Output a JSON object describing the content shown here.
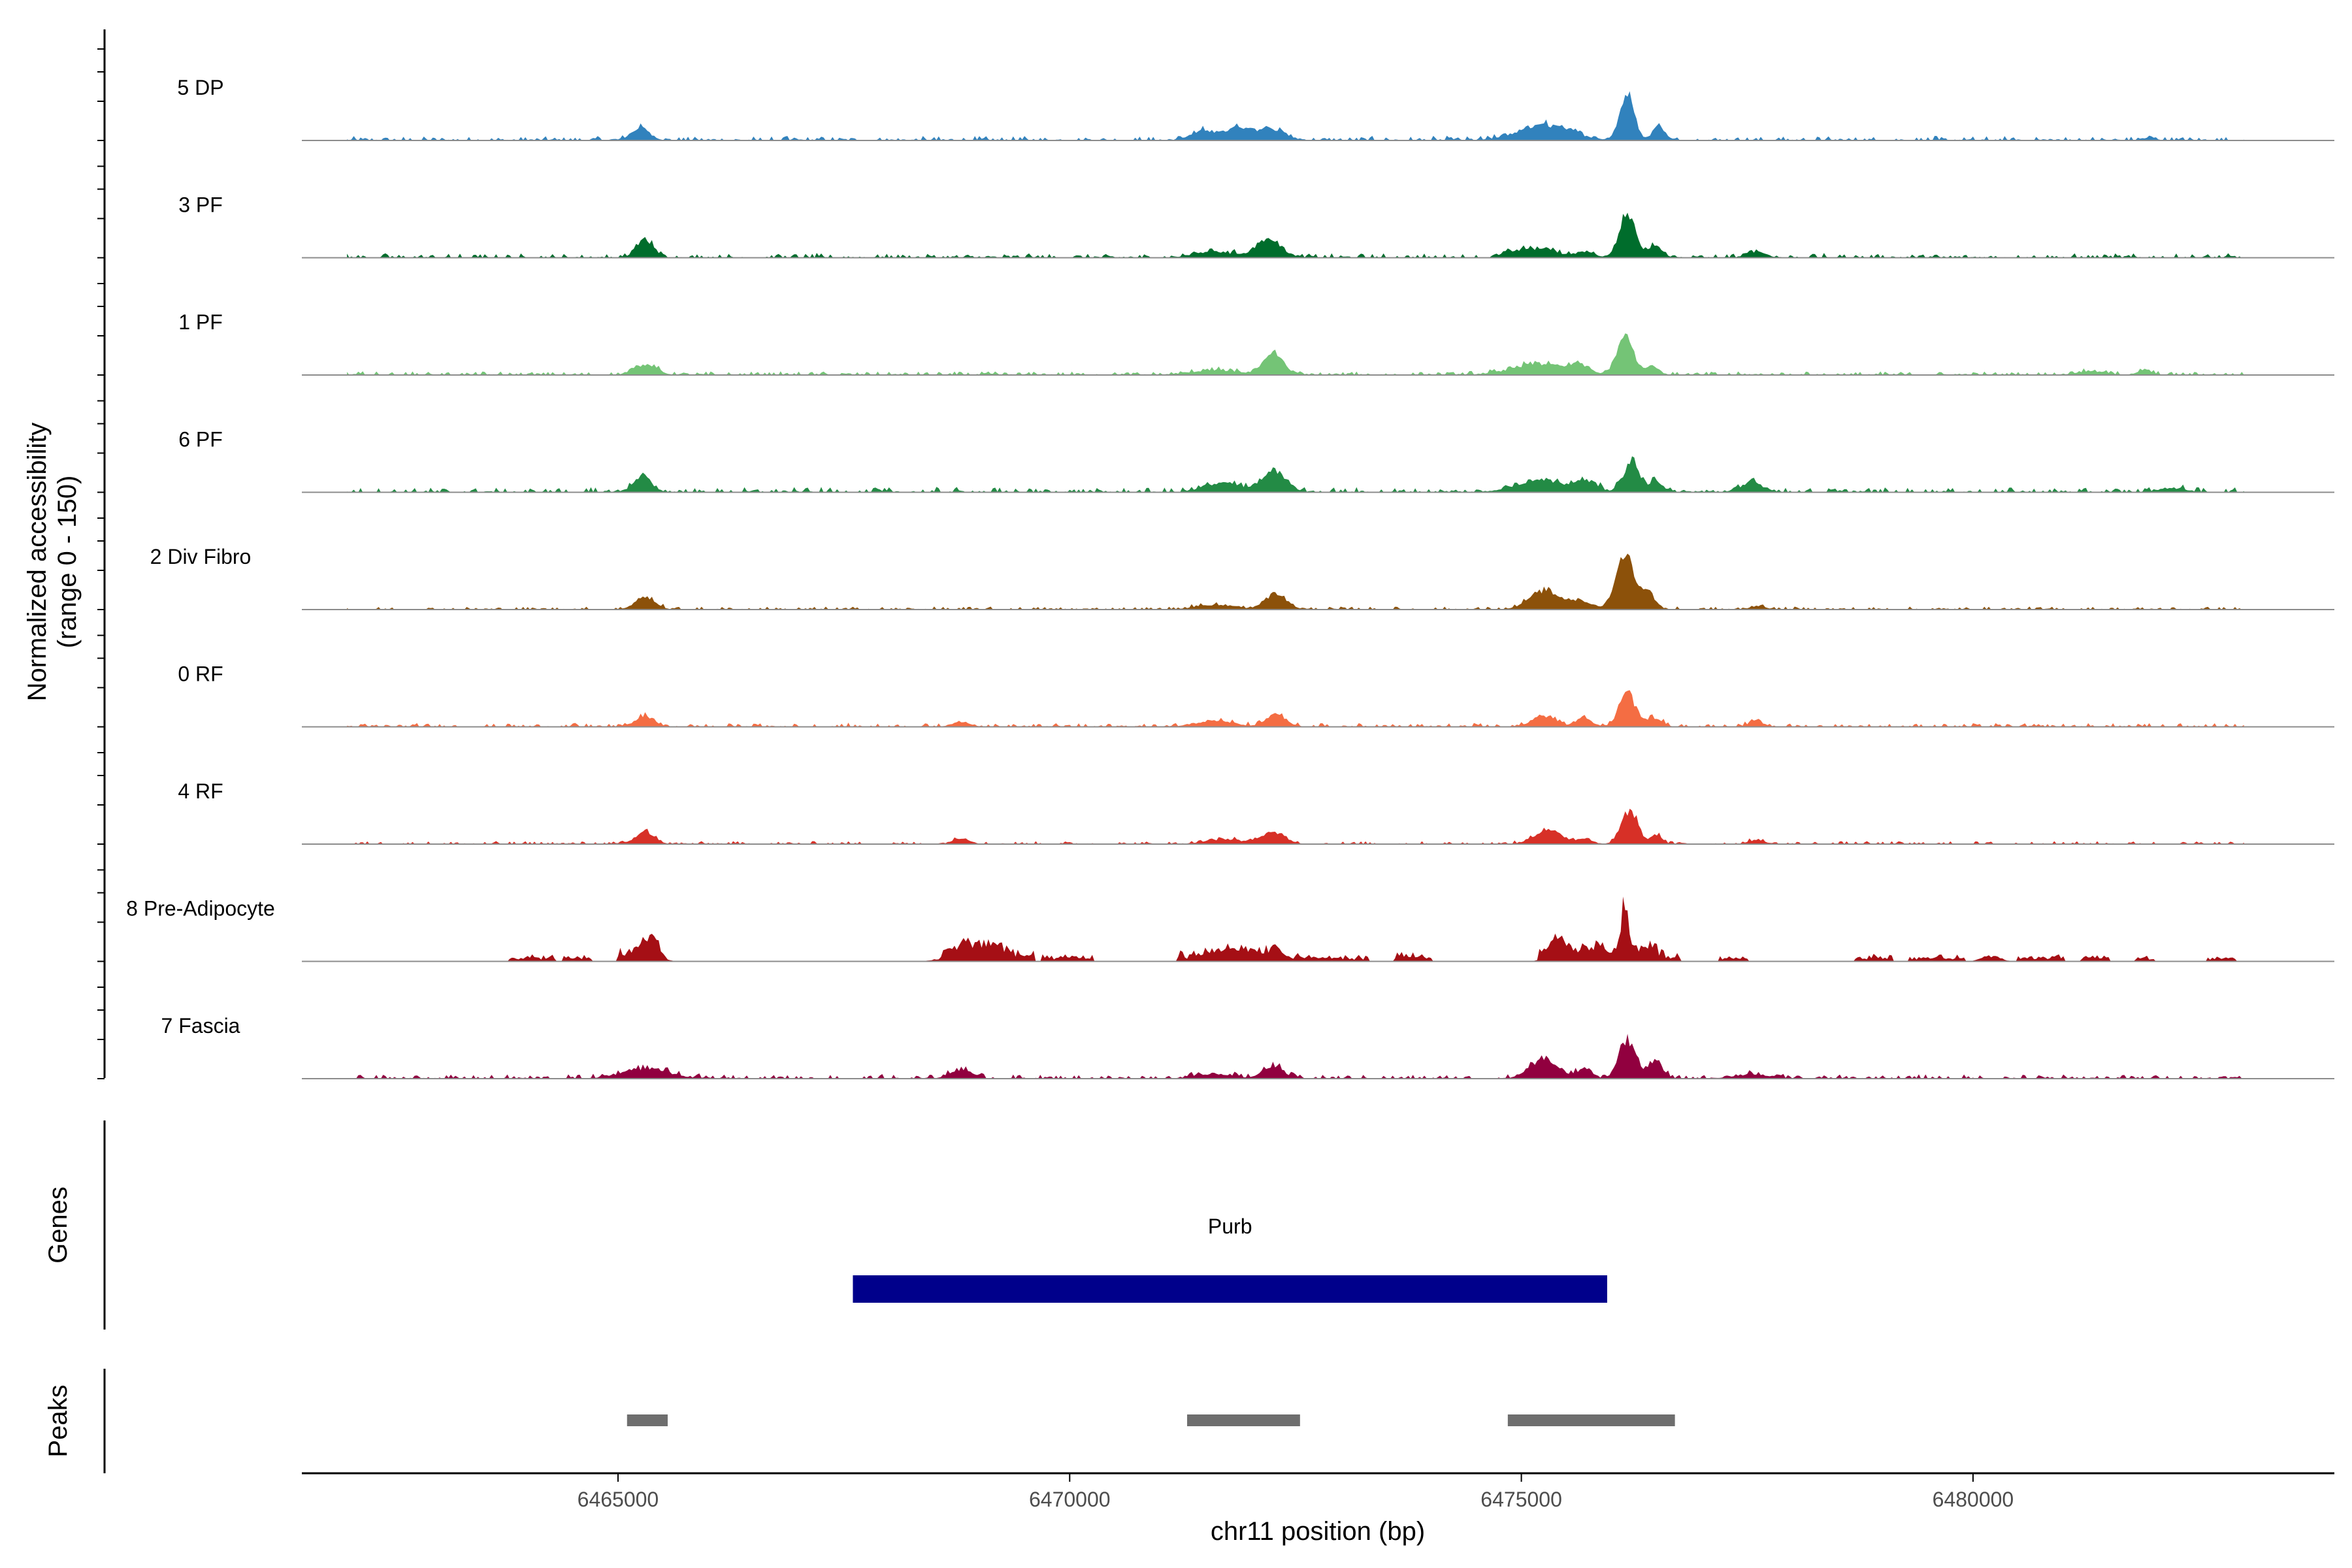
{
  "chart_data": {
    "type": "area",
    "title": "",
    "xlabel": "chr11 position (bp)",
    "ylabel_line1": "Normalized accessibility",
    "ylabel_line2": "(range 0 - 150)",
    "ylim": [
      0,
      150
    ],
    "xlim": [
      6461500,
      6484000
    ],
    "x_ticks": [
      6465000,
      6470000,
      6475000,
      6480000
    ],
    "x_tick_labels": [
      "6465000",
      "6470000",
      "6475000",
      "6480000"
    ],
    "signal_range": [
      6462000,
      6483000
    ],
    "tracks": [
      {
        "name": "5 DP",
        "color": "#3182bd",
        "noise": 3.5,
        "peaks": [
          [
            6465250,
            100,
            16
          ],
          [
            6471500,
            150,
            12
          ],
          [
            6471850,
            120,
            14
          ],
          [
            6472200,
            160,
            16
          ],
          [
            6475150,
            250,
            14
          ],
          [
            6475450,
            220,
            10
          ],
          [
            6476170,
            80,
            60
          ],
          [
            6476520,
            60,
            20
          ],
          [
            6481950,
            80,
            3
          ]
        ]
      },
      {
        "name": "3 PF",
        "color": "#006d2c",
        "noise": 3.5,
        "peaks": [
          [
            6465300,
            90,
            24
          ],
          [
            6471600,
            200,
            8
          ],
          [
            6472200,
            140,
            24
          ],
          [
            6474950,
            120,
            8
          ],
          [
            6475250,
            150,
            12
          ],
          [
            6475700,
            100,
            8
          ],
          [
            6476170,
            90,
            55
          ],
          [
            6476480,
            80,
            14
          ],
          [
            6477600,
            100,
            8
          ]
        ]
      },
      {
        "name": "1 PF",
        "color": "#74c476",
        "noise": 3.0,
        "peaks": [
          [
            6465300,
            120,
            14
          ],
          [
            6471600,
            250,
            6
          ],
          [
            6472250,
            110,
            28
          ],
          [
            6475200,
            300,
            14
          ],
          [
            6475650,
            100,
            10
          ],
          [
            6476150,
            90,
            55
          ],
          [
            6476450,
            70,
            12
          ],
          [
            6481300,
            150,
            5
          ],
          [
            6481900,
            80,
            6
          ]
        ]
      },
      {
        "name": "6 PF",
        "color": "#238b45",
        "noise": 4.0,
        "peaks": [
          [
            6465270,
            100,
            20
          ],
          [
            6471700,
            200,
            12
          ],
          [
            6472270,
            130,
            28
          ],
          [
            6475200,
            250,
            16
          ],
          [
            6475700,
            120,
            15
          ],
          [
            6476220,
            90,
            40
          ],
          [
            6476500,
            70,
            14
          ],
          [
            6477550,
            130,
            12
          ],
          [
            6482200,
            150,
            5
          ]
        ]
      },
      {
        "name": "2 Div Fibro",
        "color": "#8c510a",
        "noise": 2.5,
        "peaks": [
          [
            6465300,
            110,
            16
          ],
          [
            6471600,
            200,
            6
          ],
          [
            6472280,
            120,
            20
          ],
          [
            6475250,
            160,
            24
          ],
          [
            6475650,
            140,
            10
          ],
          [
            6476150,
            100,
            70
          ],
          [
            6476400,
            80,
            22
          ],
          [
            6477620,
            80,
            5
          ]
        ]
      },
      {
        "name": "0 RF",
        "color": "#f46d43",
        "noise": 3.0,
        "peaks": [
          [
            6465300,
            100,
            14
          ],
          [
            6468800,
            100,
            6
          ],
          [
            6471600,
            200,
            8
          ],
          [
            6472280,
            110,
            15
          ],
          [
            6475250,
            130,
            14
          ],
          [
            6475700,
            80,
            12
          ],
          [
            6476170,
            90,
            45
          ],
          [
            6476480,
            80,
            12
          ],
          [
            6477600,
            90,
            6
          ]
        ]
      },
      {
        "name": "4 RF",
        "color": "#d73027",
        "noise": 2.5,
        "peaks": [
          [
            6465300,
            100,
            16
          ],
          [
            6468800,
            90,
            8
          ],
          [
            6471700,
            200,
            6
          ],
          [
            6472250,
            130,
            15
          ],
          [
            6475300,
            150,
            19
          ],
          [
            6475700,
            80,
            7
          ],
          [
            6476200,
            90,
            44
          ],
          [
            6476500,
            60,
            12
          ],
          [
            6477600,
            90,
            5
          ]
        ]
      },
      {
        "name": "8 Pre-Adipocyte",
        "color": "#a50f15",
        "noise": 0.0,
        "peaks": [
          [
            6465350,
            100,
            25
          ],
          [
            6468900,
            200,
            17
          ],
          [
            6469200,
            120,
            9
          ],
          [
            6471800,
            200,
            11
          ],
          [
            6472300,
            120,
            10
          ],
          [
            6475400,
            100,
            22
          ],
          [
            6475800,
            120,
            13
          ],
          [
            6476150,
            50,
            67
          ],
          [
            6476400,
            80,
            15
          ],
          [
            6480200,
            100,
            7
          ]
        ],
        "blocks": [
          [
            6463800,
            6464300,
            5
          ],
          [
            6464400,
            6464700,
            5
          ],
          [
            6465000,
            6465450,
            10
          ],
          [
            6468600,
            6469600,
            8
          ],
          [
            6469700,
            6470250,
            5
          ],
          [
            6471200,
            6472350,
            8
          ],
          [
            6472500,
            6473300,
            5
          ],
          [
            6473600,
            6474000,
            7
          ],
          [
            6475200,
            6476750,
            8
          ],
          [
            6477200,
            6477500,
            5
          ],
          [
            6478700,
            6479100,
            6
          ],
          [
            6479300,
            6479900,
            5
          ],
          [
            6480500,
            6481000,
            6
          ],
          [
            6481200,
            6481500,
            5
          ],
          [
            6481800,
            6482000,
            4
          ],
          [
            6482600,
            6482900,
            4
          ]
        ]
      },
      {
        "name": "7 Fascia",
        "color": "#91003f",
        "noise": 3.5,
        "peaks": [
          [
            6465300,
            250,
            13
          ],
          [
            6468800,
            120,
            12
          ],
          [
            6471600,
            200,
            6
          ],
          [
            6472250,
            110,
            17
          ],
          [
            6475250,
            150,
            26
          ],
          [
            6475700,
            80,
            12
          ],
          [
            6476170,
            90,
            52
          ],
          [
            6476480,
            80,
            24
          ],
          [
            6477550,
            200,
            5
          ]
        ]
      }
    ],
    "genes": [
      {
        "name": "Purb",
        "start": 6467600,
        "end": 6475950,
        "color": "#00008b"
      }
    ],
    "peaks": [
      {
        "start": 6465100,
        "end": 6465550
      },
      {
        "start": 6471300,
        "end": 6472550
      },
      {
        "start": 6474850,
        "end": 6476700
      }
    ],
    "peaks_color": "#6e6e6e",
    "panel_labels": {
      "genes": "Genes",
      "peaks": "Peaks"
    }
  }
}
